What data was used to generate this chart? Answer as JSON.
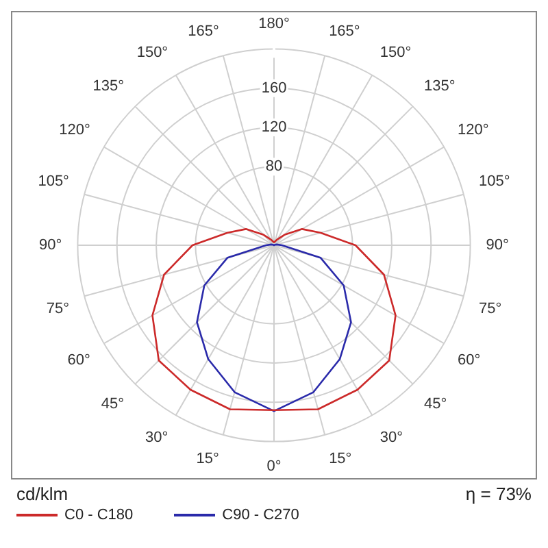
{
  "chart_data": {
    "type": "radar",
    "ylabel": "cd/klm",
    "annotations": [
      "η = 73%"
    ],
    "categories": [
      "180°",
      "165°",
      "150°",
      "135°",
      "120°",
      "105°",
      "90°",
      "75°",
      "60°",
      "45°",
      "30°",
      "15°",
      "0°",
      "15°",
      "30°",
      "45°",
      "60°",
      "75°",
      "90°",
      "105°",
      "120°",
      "135°",
      "150°",
      "165°"
    ],
    "series": [
      {
        "name": "C0 - C180",
        "color": "#cc2a2a",
        "values": [
          3,
          4,
          7,
          15,
          33,
          49,
          83,
          116,
          143,
          166,
          170,
          173,
          168,
          173,
          170,
          166,
          143,
          116,
          83,
          49,
          33,
          15,
          7,
          4
        ]
      },
      {
        "name": "C90 - C270",
        "color": "#2a2aaa",
        "values": [
          0,
          0,
          0,
          0,
          1,
          3,
          8,
          49,
          82,
          111,
          134,
          155,
          169,
          155,
          134,
          111,
          82,
          49,
          8,
          3,
          1,
          0,
          0,
          0
        ]
      }
    ],
    "ylim": [
      0,
      200
    ],
    "yticks": [
      80,
      120,
      160
    ],
    "grid": true,
    "legend": "bottom left",
    "marker": "none",
    "line_style": "solid"
  }
}
